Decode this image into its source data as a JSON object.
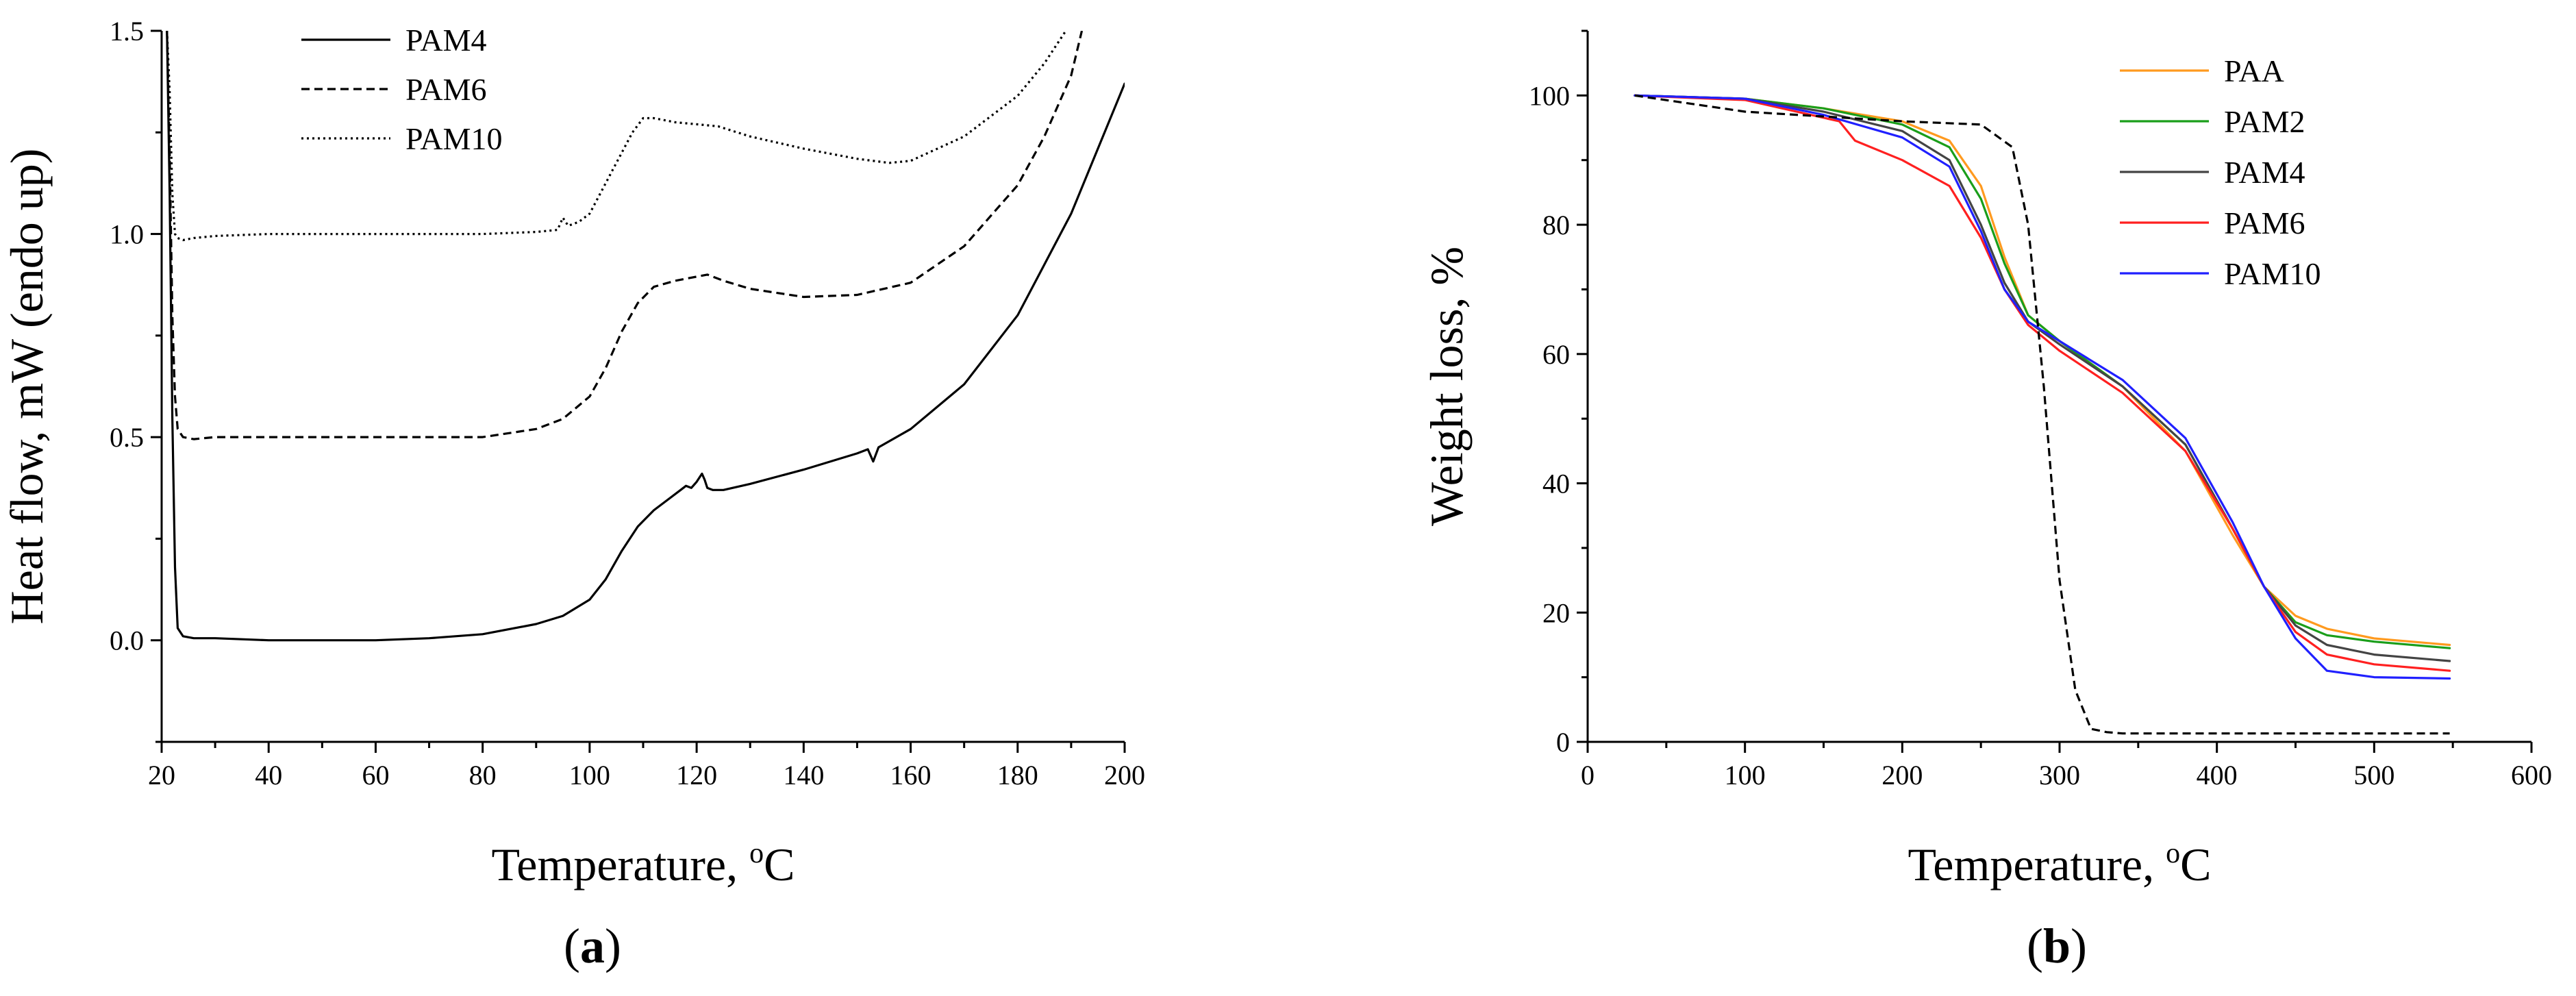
{
  "chart_data": [
    {
      "type": "line",
      "panel_label": "a",
      "xlabel": "Temperature, ",
      "xlabel_sup": "o",
      "xlabel_unit": "C",
      "ylabel": "Heat flow, mW (endo up)",
      "xlim": [
        20,
        200
      ],
      "ylim": [
        -0.25,
        1.5
      ],
      "xticks": [
        "20",
        "40",
        "60",
        "80",
        "100",
        "120",
        "140",
        "160",
        "180",
        "200"
      ],
      "yticks": [
        "0.0",
        "0.5",
        "1.0",
        "1.5"
      ],
      "legend_position": "top-left",
      "series": [
        {
          "name": "PAM4",
          "color": "#000000",
          "dash": "solid",
          "x": [
            21,
            21.5,
            22,
            22.5,
            23,
            24,
            26,
            30,
            40,
            50,
            60,
            70,
            80,
            90,
            95,
            100,
            103,
            106,
            109,
            112,
            115,
            117,
            118,
            119,
            120,
            121,
            121.5,
            122,
            123,
            125,
            130,
            140,
            150,
            152,
            153,
            154,
            160,
            170,
            180,
            190,
            200
          ],
          "y": [
            1.5,
            1.1,
            0.55,
            0.18,
            0.03,
            0.01,
            0.005,
            0.005,
            0.0,
            0.0,
            0.0,
            0.005,
            0.015,
            0.04,
            0.06,
            0.1,
            0.15,
            0.22,
            0.28,
            0.32,
            0.35,
            0.37,
            0.38,
            0.375,
            0.39,
            0.41,
            0.395,
            0.375,
            0.37,
            0.37,
            0.385,
            0.42,
            0.46,
            0.47,
            0.44,
            0.475,
            0.52,
            0.63,
            0.8,
            1.05,
            1.37
          ]
        },
        {
          "name": "PAM6",
          "color": "#000000",
          "dash": "dashed",
          "x": [
            21,
            21.5,
            22,
            22.5,
            23,
            24,
            26,
            30,
            40,
            50,
            60,
            70,
            80,
            90,
            95,
            100,
            103,
            106,
            109,
            112,
            116,
            120,
            122,
            125,
            130,
            140,
            150,
            160,
            170,
            180,
            185,
            190,
            192
          ],
          "y": [
            1.5,
            1.2,
            0.8,
            0.6,
            0.52,
            0.5,
            0.495,
            0.5,
            0.5,
            0.5,
            0.5,
            0.5,
            0.5,
            0.52,
            0.545,
            0.6,
            0.67,
            0.76,
            0.83,
            0.87,
            0.885,
            0.895,
            0.9,
            0.885,
            0.865,
            0.845,
            0.85,
            0.88,
            0.97,
            1.12,
            1.24,
            1.39,
            1.5
          ]
        },
        {
          "name": "PAM10",
          "color": "#000000",
          "dash": "dotted",
          "x": [
            21,
            21.5,
            22,
            22.5,
            23,
            24,
            26,
            30,
            40,
            50,
            60,
            70,
            80,
            90,
            94,
            95,
            96,
            98,
            100,
            102,
            104,
            106,
            108,
            110,
            112,
            116,
            120,
            124,
            130,
            140,
            150,
            156,
            160,
            170,
            180,
            185,
            189
          ],
          "y": [
            1.5,
            1.35,
            1.1,
            1.0,
            0.99,
            0.985,
            0.99,
            0.995,
            1.0,
            1.0,
            1.0,
            1.0,
            1.0,
            1.005,
            1.01,
            1.04,
            1.02,
            1.03,
            1.05,
            1.1,
            1.15,
            1.2,
            1.25,
            1.285,
            1.285,
            1.275,
            1.27,
            1.265,
            1.24,
            1.21,
            1.185,
            1.175,
            1.18,
            1.24,
            1.34,
            1.42,
            1.5
          ]
        }
      ]
    },
    {
      "type": "line",
      "panel_label": "b",
      "xlabel": "Temperature, ",
      "xlabel_sup": "o",
      "xlabel_unit": "C",
      "ylabel": "Weight loss, %",
      "xlim": [
        0,
        600
      ],
      "ylim": [
        0,
        110
      ],
      "xticks": [
        "0",
        "100",
        "200",
        "300",
        "400",
        "500",
        "600"
      ],
      "yticks": [
        "0",
        "20",
        "40",
        "60",
        "80",
        "100"
      ],
      "legend_position": "top-right",
      "series": [
        {
          "name": "PAA",
          "color": "#ff9a1f",
          "dash": "solid",
          "x": [
            30,
            100,
            150,
            200,
            230,
            250,
            265,
            280,
            300,
            340,
            380,
            410,
            430,
            450,
            470,
            500,
            548
          ],
          "y": [
            100,
            99.5,
            98,
            96,
            93,
            86,
            75,
            66,
            62,
            55,
            45,
            32,
            24,
            19.5,
            17.5,
            16,
            15
          ]
        },
        {
          "name": "PAM2",
          "color": "#1a9e1a",
          "dash": "solid",
          "x": [
            30,
            100,
            150,
            200,
            230,
            250,
            265,
            280,
            300,
            340,
            380,
            410,
            430,
            450,
            470,
            500,
            548
          ],
          "y": [
            100,
            99.5,
            98,
            95.5,
            92,
            84,
            74,
            66,
            62,
            55,
            46,
            33,
            24,
            18.5,
            16.5,
            15.5,
            14.5
          ]
        },
        {
          "name": "PAM4",
          "color": "#444444",
          "dash": "solid",
          "x": [
            30,
            100,
            150,
            200,
            230,
            250,
            265,
            280,
            300,
            340,
            380,
            410,
            430,
            450,
            470,
            500,
            548
          ],
          "y": [
            100,
            99.5,
            97.5,
            94.5,
            90,
            80,
            71,
            65,
            61.5,
            55,
            46,
            33,
            24,
            18,
            15,
            13.5,
            12.5
          ]
        },
        {
          "name": "PAM6",
          "color": "#ff2020",
          "dash": "solid",
          "x": [
            30,
            100,
            160,
            170,
            200,
            230,
            250,
            265,
            280,
            300,
            340,
            380,
            410,
            430,
            450,
            470,
            500,
            548
          ],
          "y": [
            100,
            99.3,
            96,
            93,
            90,
            86,
            78,
            70,
            64.5,
            60.5,
            54,
            45,
            33,
            24,
            17,
            13.5,
            12,
            11
          ]
        },
        {
          "name": "PAM10",
          "color": "#2020ff",
          "dash": "solid",
          "x": [
            30,
            100,
            150,
            200,
            230,
            250,
            265,
            280,
            300,
            340,
            380,
            410,
            430,
            450,
            470,
            500,
            548
          ],
          "y": [
            100,
            99.5,
            97,
            93.5,
            89,
            79,
            70,
            65,
            62,
            56,
            47,
            34,
            24,
            16,
            11,
            10,
            9.8
          ]
        },
        {
          "name": "",
          "color": "#000000",
          "dash": "dashed",
          "x": [
            30,
            100,
            200,
            250,
            270,
            280,
            290,
            300,
            310,
            320,
            330,
            340,
            400,
            500,
            548
          ],
          "y": [
            100,
            97.5,
            96,
            95.5,
            92,
            80,
            55,
            25,
            8,
            2,
            1.5,
            1.3,
            1.3,
            1.3,
            1.3
          ]
        }
      ]
    }
  ]
}
